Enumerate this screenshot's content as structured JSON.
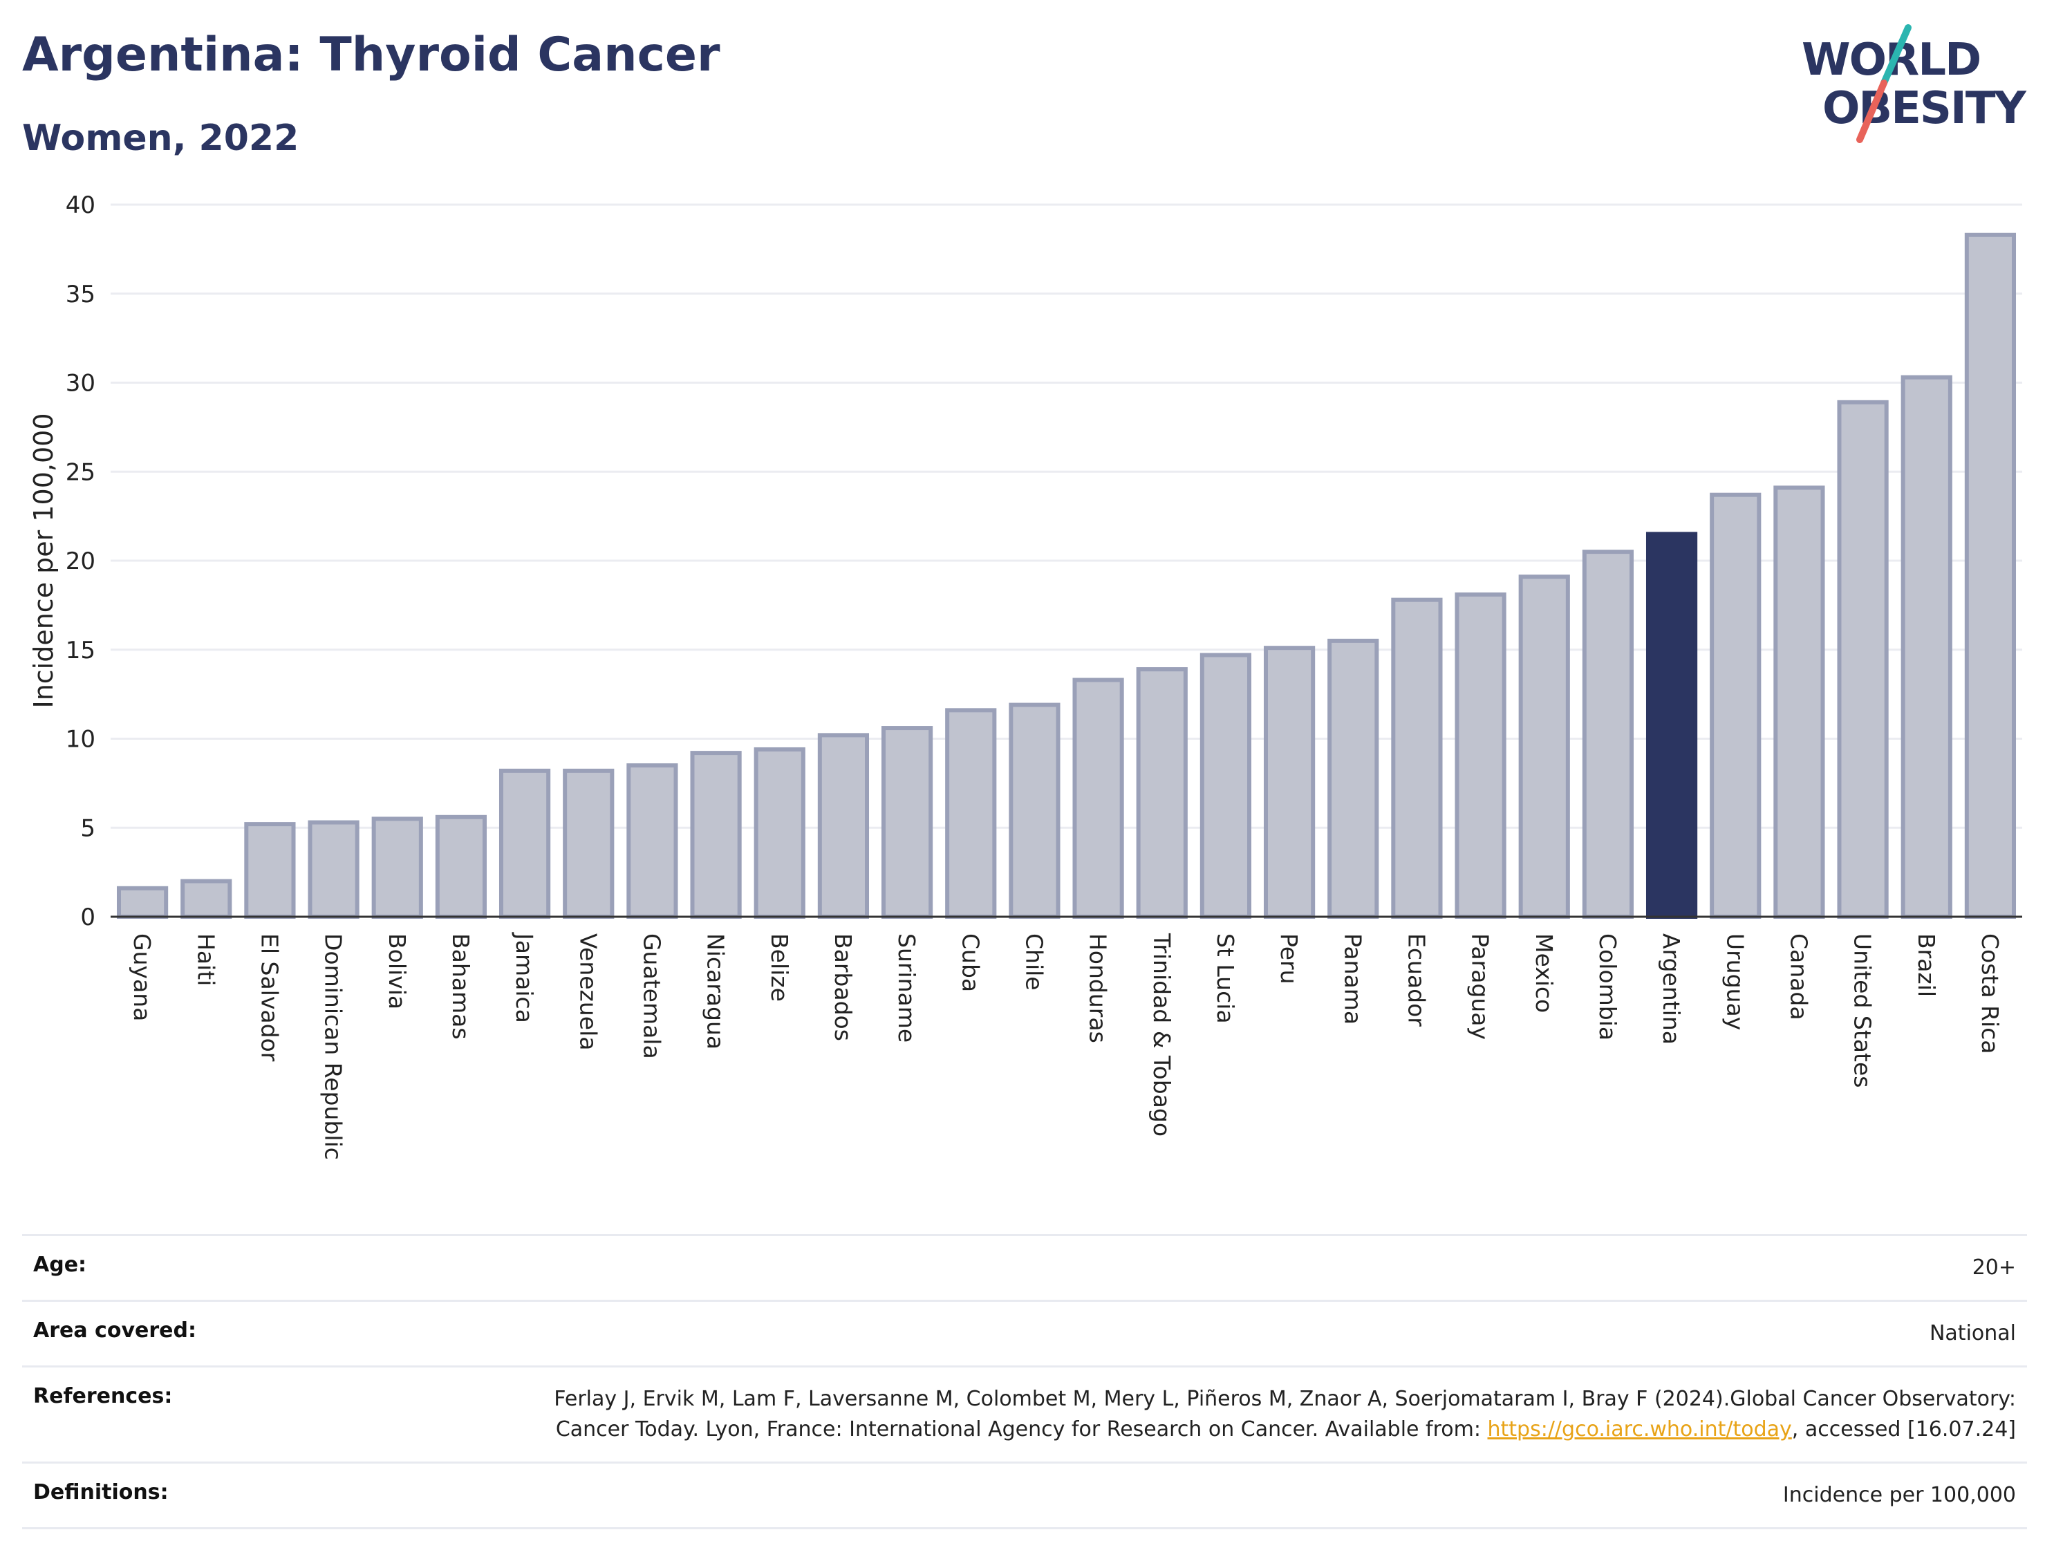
{
  "header": {
    "title": "Argentina: Thyroid Cancer",
    "subtitle": "Women, 2022"
  },
  "logo": {
    "line1": "WORLD",
    "line2": "OBESITY",
    "colors": {
      "text": "#2b3561",
      "slash_teal": "#2bb5b0",
      "slash_coral": "#e8635a"
    }
  },
  "chart_data": {
    "type": "bar",
    "title": "Argentina: Thyroid Cancer",
    "subtitle": "Women, 2022",
    "xlabel": "",
    "ylabel": "Incidence per 100,000",
    "ylim": [
      0,
      40
    ],
    "yticks": [
      0,
      5,
      10,
      15,
      20,
      25,
      30,
      35,
      40
    ],
    "grid": true,
    "highlight": "Argentina",
    "colors": {
      "bar": "#c0c3cf",
      "bar_border": "#9aa0b8",
      "highlight": "#2b3561",
      "grid": "#ebecf1",
      "axis": "#333333"
    },
    "categories": [
      "Guyana",
      "Haiti",
      "El Salvador",
      "Dominican Republic",
      "Bolivia",
      "Bahamas",
      "Jamaica",
      "Venezuela",
      "Guatemala",
      "Nicaragua",
      "Belize",
      "Barbados",
      "Suriname",
      "Cuba",
      "Chile",
      "Honduras",
      "Trinidad & Tobago",
      "St Lucia",
      "Peru",
      "Panama",
      "Ecuador",
      "Paraguay",
      "Mexico",
      "Colombia",
      "Argentina",
      "Uruguay",
      "Canada",
      "United States",
      "Brazil",
      "Costa Rica"
    ],
    "values": [
      1.6,
      2.0,
      5.2,
      5.3,
      5.5,
      5.6,
      8.2,
      8.2,
      8.5,
      9.2,
      9.4,
      10.2,
      10.6,
      11.6,
      11.9,
      13.3,
      13.9,
      14.7,
      15.1,
      15.5,
      17.8,
      18.1,
      19.1,
      20.5,
      21.5,
      23.7,
      24.1,
      28.9,
      30.3,
      38.3
    ]
  },
  "info": {
    "age": {
      "label": "Age:",
      "value": "20+"
    },
    "area": {
      "label": "Area covered:",
      "value": "National"
    },
    "references": {
      "label": "References:",
      "text1": "Ferlay J, Ervik M, Lam F, Laversanne M, Colombet M, Mery L, Piñeros M, Znaor A, Soerjomataram I, Bray F (2024).Global Cancer Observatory: Cancer Today. Lyon, France: International Agency for Research on Cancer. Available from: ",
      "link": "https://gco.iarc.who.int/today",
      "text2": ", accessed [16.07.24]"
    },
    "definitions": {
      "label": "Definitions:",
      "value": "Incidence per 100,000"
    }
  }
}
